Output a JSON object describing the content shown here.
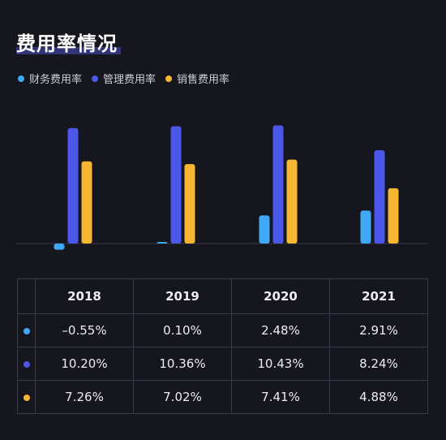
{
  "title": "费用率情况",
  "legend": [
    {
      "name": "财务费用率",
      "color": "#3fa9f5"
    },
    {
      "name": "管理费用率",
      "color": "#4a57e8"
    },
    {
      "name": "销售费用率",
      "color": "#f5b731"
    }
  ],
  "chart_data": {
    "type": "bar",
    "categories": [
      "2018",
      "2019",
      "2020",
      "2021"
    ],
    "series": [
      {
        "name": "财务费用率",
        "color": "#3fa9f5",
        "values": [
          -0.55,
          0.1,
          2.48,
          2.91
        ]
      },
      {
        "name": "管理费用率",
        "color": "#4a57e8",
        "values": [
          10.2,
          10.36,
          10.43,
          8.24
        ]
      },
      {
        "name": "销售费用率",
        "color": "#f5b731",
        "values": [
          7.26,
          7.02,
          7.41,
          4.88
        ]
      }
    ],
    "unit": "%",
    "grid": false,
    "legend_position": "top-left"
  },
  "table": {
    "headers": [
      "",
      "2018",
      "2019",
      "2020",
      "2021"
    ],
    "rows": [
      {
        "color": "#3fa9f5",
        "cells": [
          "–0.55%",
          "0.10%",
          "2.48%",
          "2.91%"
        ]
      },
      {
        "color": "#4a57e8",
        "cells": [
          "10.20%",
          "10.36%",
          "10.43%",
          "8.24%"
        ]
      },
      {
        "color": "#f5b731",
        "cells": [
          "7.26%",
          "7.02%",
          "7.41%",
          "4.88%"
        ]
      }
    ]
  }
}
